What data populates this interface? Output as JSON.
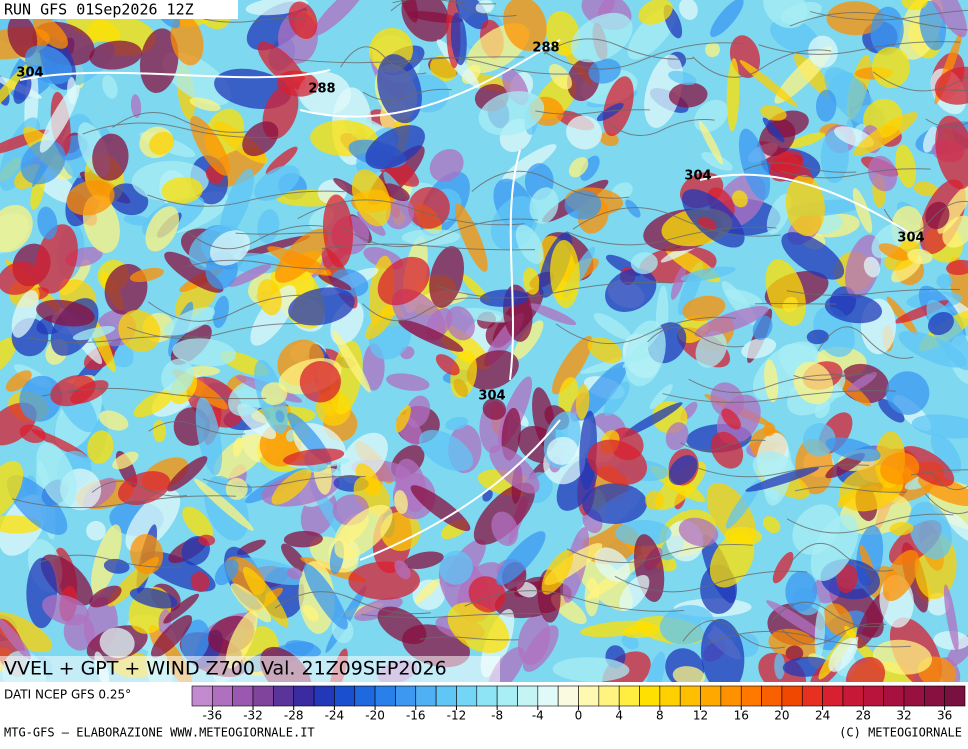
{
  "header": {
    "run": "RUN GFS 01Sep2026 12Z"
  },
  "map": {
    "contour_labels": [
      "304",
      "288",
      "288",
      "304",
      "304",
      "304"
    ],
    "title": "VVEL + GPT + WIND Z700 Val. 21Z09SEP2026"
  },
  "colorbar": {
    "source": "DATI NCEP GFS 0.25°",
    "ticks": [
      -36,
      -32,
      -28,
      -24,
      -20,
      -16,
      -12,
      -8,
      -4,
      0,
      4,
      8,
      12,
      16,
      20,
      24,
      28,
      32,
      36
    ],
    "colors": [
      "#c48ad0",
      "#b070c0",
      "#9a58b0",
      "#80449c",
      "#5a3498",
      "#3a2ca0",
      "#2238b8",
      "#1a50d0",
      "#1e68e0",
      "#2a80ea",
      "#3c98f0",
      "#50b0f4",
      "#60c6f6",
      "#74d6f6",
      "#8ee4f4",
      "#a8eef4",
      "#c4f4f4",
      "#e0fafa",
      "#fafae0",
      "#fff8b0",
      "#fff480",
      "#ffee40",
      "#ffe000",
      "#ffd000",
      "#ffbe00",
      "#ffa800",
      "#ff9000",
      "#ff7800",
      "#f86000",
      "#f04800",
      "#e83020",
      "#d82030",
      "#c81838",
      "#b8143c",
      "#a81040",
      "#981040",
      "#881040",
      "#781040"
    ]
  },
  "footer": {
    "left": "MTG-GFS — ELABORAZIONE WWW.METEOGIORNALE.IT",
    "right": "(C) METEOGIORNALE"
  }
}
